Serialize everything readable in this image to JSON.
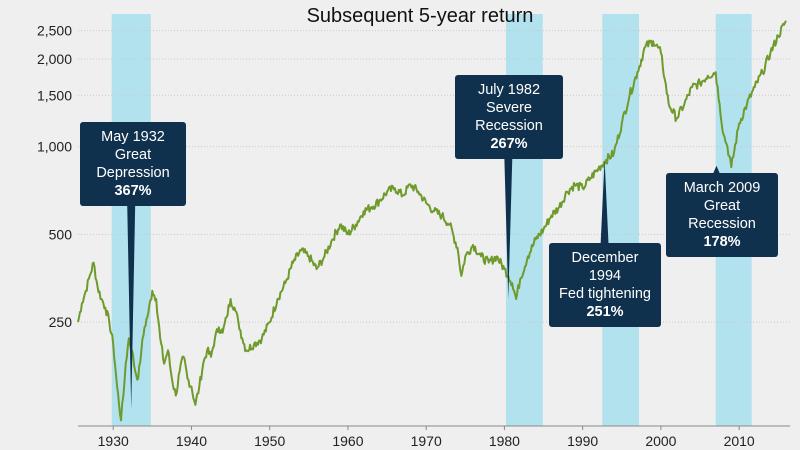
{
  "chart_data": {
    "type": "line",
    "title": "Subsequent 5-year return",
    "xlabel": "",
    "ylabel": "",
    "y_scale": "log",
    "xlim": [
      1925.5,
      2016.5
    ],
    "ylim": [
      110,
      2850
    ],
    "x_ticks": [
      1930,
      1940,
      1950,
      1960,
      1970,
      1980,
      1990,
      2000,
      2010
    ],
    "x_tick_labels": [
      "1930",
      "1940",
      "1950",
      "1960",
      "1970",
      "1980",
      "1990",
      "2000",
      "2010"
    ],
    "y_ticks": [
      250,
      500,
      1000,
      1500,
      2000,
      2500
    ],
    "y_tick_labels": [
      "250",
      "500",
      "1,000",
      "1,500",
      "2,000",
      "2,500"
    ],
    "grid": "horizontal",
    "line_color": "#6f9a2c",
    "band_color": "#b3e2ef",
    "shaded_periods": [
      {
        "start": 1929.8,
        "end": 1934.8
      },
      {
        "start": 1980.2,
        "end": 1984.9
      },
      {
        "start": 1992.5,
        "end": 1997.2
      },
      {
        "start": 2007.0,
        "end": 2011.6
      }
    ],
    "series": [
      {
        "x": [
          1925.5,
          1926,
          1926.5,
          1927,
          1927.5,
          1928,
          1928.5,
          1929,
          1929.5,
          1930,
          1930.5,
          1931,
          1931.3,
          1931.6,
          1932,
          1932.4,
          1932.8,
          1933.2,
          1933.6,
          1934,
          1934.5,
          1935,
          1935.5,
          1936,
          1936.5,
          1937,
          1937.5,
          1938,
          1938.5,
          1939,
          1939.5,
          1940,
          1940.5,
          1941,
          1941.5,
          1942,
          1942.5,
          1943,
          1943.5,
          1944,
          1944.5,
          1945,
          1945.5,
          1946,
          1946.5,
          1947,
          1948,
          1949,
          1950,
          1951,
          1952,
          1953,
          1954,
          1955,
          1956,
          1957,
          1958,
          1959,
          1960,
          1961,
          1962,
          1963,
          1964,
          1965,
          1966,
          1967,
          1968,
          1969,
          1970,
          1971,
          1972,
          1973,
          1974,
          1974.5,
          1975,
          1976,
          1977,
          1978,
          1979,
          1980,
          1980.5,
          1981,
          1981.5,
          1982,
          1983,
          1984,
          1985,
          1986,
          1987,
          1988,
          1989,
          1990,
          1991,
          1992,
          1993,
          1994,
          1995,
          1996,
          1997,
          1998,
          1999,
          2000,
          2000.5,
          2001,
          2002,
          2003,
          2004,
          2005,
          2006,
          2007,
          2007.5,
          2008,
          2008.5,
          2009,
          2010,
          2011,
          2012,
          2013,
          2014,
          2015,
          2016
        ],
        "y": [
          250,
          290,
          320,
          360,
          400,
          330,
          300,
          280,
          250,
          210,
          150,
          115,
          140,
          180,
          220,
          200,
          170,
          160,
          200,
          240,
          270,
          320,
          300,
          220,
          180,
          200,
          160,
          140,
          170,
          190,
          160,
          150,
          130,
          150,
          180,
          200,
          190,
          220,
          240,
          230,
          260,
          300,
          280,
          250,
          220,
          200,
          210,
          220,
          250,
          300,
          340,
          400,
          440,
          420,
          380,
          420,
          480,
          540,
          500,
          540,
          600,
          620,
          650,
          700,
          720,
          680,
          740,
          700,
          640,
          600,
          580,
          540,
          450,
          360,
          420,
          460,
          420,
          400,
          420,
          380,
          360,
          340,
          300,
          350,
          420,
          480,
          520,
          580,
          620,
          700,
          740,
          720,
          780,
          840,
          900,
          950,
          1200,
          1500,
          1800,
          2200,
          2300,
          2100,
          1700,
          1400,
          1250,
          1400,
          1600,
          1650,
          1750,
          1800,
          1400,
          1100,
          1000,
          850,
          1200,
          1400,
          1600,
          1800,
          2100,
          2400,
          2700
        ]
      }
    ],
    "annotations": [
      {
        "lines": [
          "May 1932",
          "Great",
          "Depression"
        ],
        "value": "367%",
        "x": 1932.3,
        "y": 125
      },
      {
        "lines": [
          "July 1982",
          "Severe",
          "Recession"
        ],
        "value": "267%",
        "x": 1980.5,
        "y": 300
      },
      {
        "lines": [
          "December",
          "1994",
          "Fed tightening"
        ],
        "value": "251%",
        "x": 1992.8,
        "y": 900
      },
      {
        "lines": [
          "March 2009",
          "Great",
          "Recession"
        ],
        "value": "178%",
        "x": 2007.1,
        "y": 860
      }
    ]
  }
}
